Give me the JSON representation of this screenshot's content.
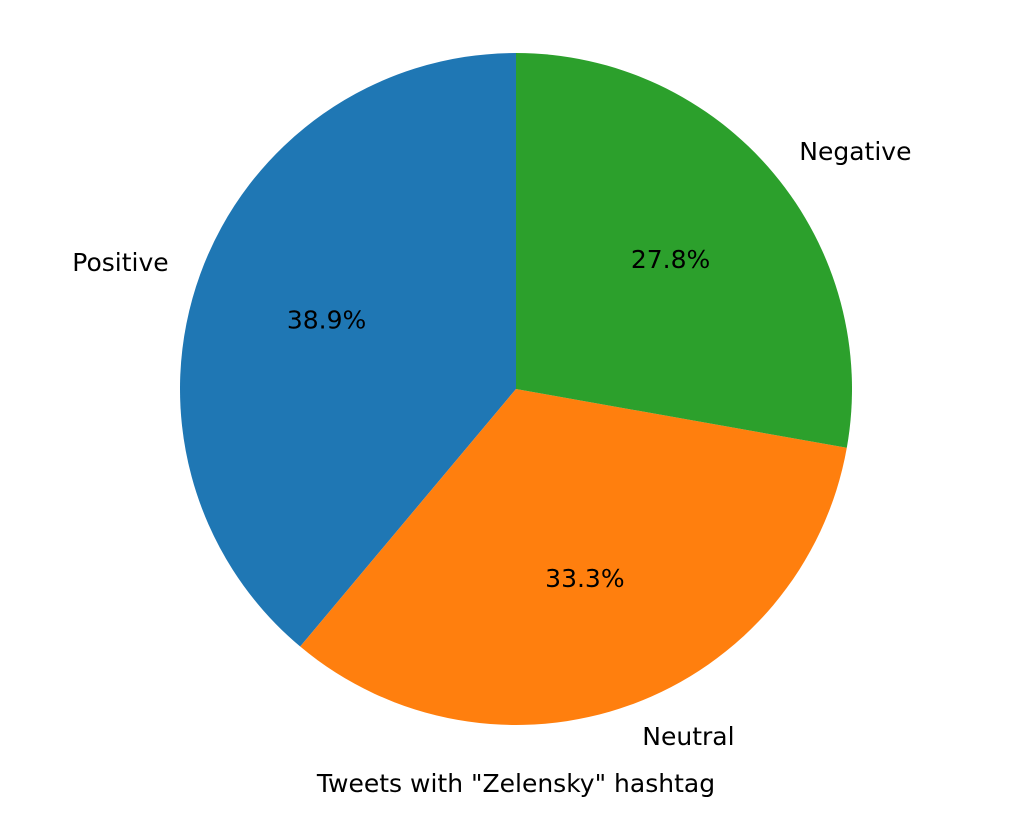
{
  "chart_data": {
    "type": "pie",
    "title": "Tweets with \"Zelensky\" hashtag",
    "start_angle_deg": 90,
    "direction": "counterclockwise",
    "slices": [
      {
        "label": "Positive",
        "value": 38.9,
        "pct_label": "38.9%",
        "color": "#1f77b4"
      },
      {
        "label": "Neutral",
        "value": 33.3,
        "pct_label": "33.3%",
        "color": "#ff7f0e"
      },
      {
        "label": "Negative",
        "value": 27.8,
        "pct_label": "27.8%",
        "color": "#2ca02c"
      }
    ]
  }
}
